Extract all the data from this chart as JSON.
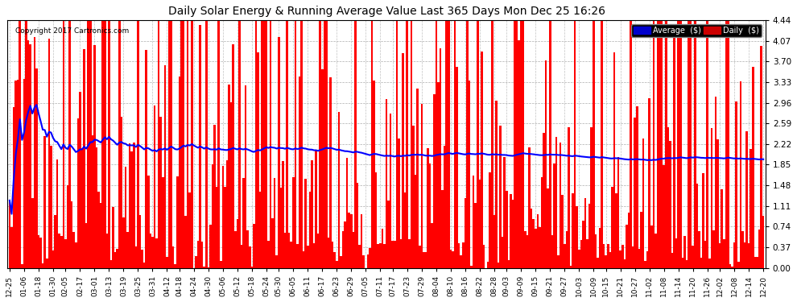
{
  "title": "Daily Solar Energy & Running Average Value Last 365 Days Mon Dec 25 16:26",
  "copyright": "Copyright 2017 Cartronics.com",
  "bar_color": "#ff0000",
  "avg_line_color": "#0000ff",
  "background_color": "#ffffff",
  "plot_bg_color": "#ffffff",
  "grid_color": "#999999",
  "ylim": [
    0.0,
    4.44
  ],
  "yticks": [
    0.0,
    0.37,
    0.74,
    1.11,
    1.48,
    1.85,
    2.22,
    2.59,
    2.96,
    3.33,
    3.7,
    4.07,
    4.44
  ],
  "legend_avg_label": "Average  ($)",
  "legend_daily_label": "Daily  ($)",
  "legend_avg_bg": "#0000cc",
  "legend_daily_bg": "#cc0000",
  "num_bars": 365,
  "x_tick_labels": [
    "12-25",
    "01-06",
    "01-18",
    "01-30",
    "02-05",
    "02-17",
    "03-01",
    "03-13",
    "03-19",
    "03-25",
    "03-31",
    "04-12",
    "04-18",
    "04-24",
    "04-30",
    "05-06",
    "05-12",
    "05-18",
    "05-24",
    "05-30",
    "06-05",
    "06-11",
    "06-17",
    "06-23",
    "06-29",
    "07-05",
    "07-11",
    "07-17",
    "07-23",
    "07-29",
    "08-04",
    "08-10",
    "08-16",
    "08-22",
    "08-28",
    "09-03",
    "09-09",
    "09-15",
    "09-21",
    "09-27",
    "10-03",
    "10-09",
    "10-15",
    "10-21",
    "10-27",
    "11-02",
    "11-08",
    "11-14",
    "11-20",
    "11-26",
    "12-02",
    "12-08",
    "12-14",
    "12-20"
  ]
}
